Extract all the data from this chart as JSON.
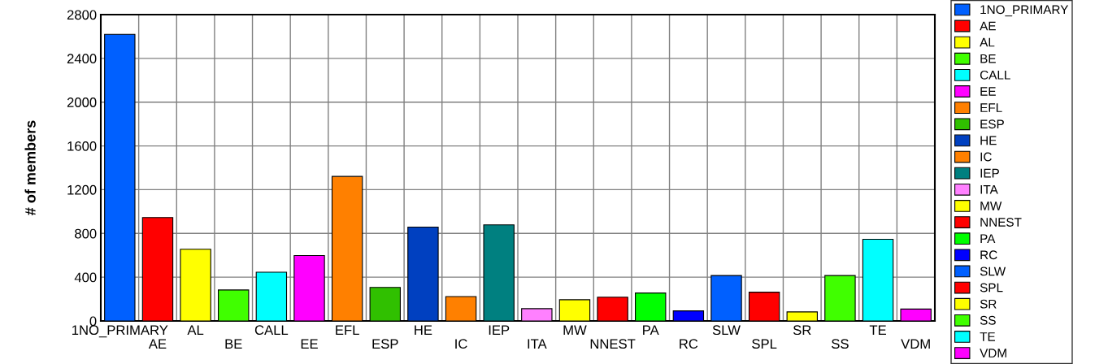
{
  "chart_data": {
    "type": "bar",
    "ylabel": "# of members",
    "categories": [
      "1NO_PRIMARY",
      "AE",
      "AL",
      "BE",
      "CALL",
      "EE",
      "EFL",
      "ESP",
      "HE",
      "IC",
      "IEP",
      "ITA",
      "MW",
      "NNEST",
      "PA",
      "RC",
      "SLW",
      "SPL",
      "SR",
      "SS",
      "TE",
      "VDM"
    ],
    "series": [
      {
        "name": "1NO_PRIMARY",
        "color": "#0060ff",
        "values": [
          2620,
          null,
          null,
          null,
          null,
          null,
          null,
          null,
          null,
          null,
          null,
          null,
          null,
          null,
          null,
          null,
          null,
          null,
          null,
          null,
          null,
          null
        ]
      },
      {
        "name": "AE",
        "color": "#ff0000",
        "values": [
          null,
          945,
          null,
          null,
          null,
          null,
          null,
          null,
          null,
          null,
          null,
          null,
          null,
          null,
          null,
          null,
          null,
          null,
          null,
          null,
          null,
          null
        ]
      },
      {
        "name": "AL",
        "color": "#ffff00",
        "values": [
          null,
          null,
          655,
          null,
          null,
          null,
          null,
          null,
          null,
          null,
          null,
          null,
          null,
          null,
          null,
          null,
          null,
          null,
          null,
          null,
          null,
          null
        ]
      },
      {
        "name": "BE",
        "color": "#40ff00",
        "values": [
          null,
          null,
          null,
          283,
          null,
          null,
          null,
          null,
          null,
          null,
          null,
          null,
          null,
          null,
          null,
          null,
          null,
          null,
          null,
          null,
          null,
          null
        ]
      },
      {
        "name": "CALL",
        "color": "#00ffff",
        "values": [
          null,
          null,
          null,
          null,
          446,
          null,
          null,
          null,
          null,
          null,
          null,
          null,
          null,
          null,
          null,
          null,
          null,
          null,
          null,
          null,
          null,
          null
        ]
      },
      {
        "name": "EE",
        "color": "#ff00ff",
        "values": [
          null,
          null,
          null,
          null,
          null,
          598,
          null,
          null,
          null,
          null,
          null,
          null,
          null,
          null,
          null,
          null,
          null,
          null,
          null,
          null,
          null,
          null
        ]
      },
      {
        "name": "EFL",
        "color": "#ff8000",
        "values": [
          null,
          null,
          null,
          null,
          null,
          null,
          1321,
          null,
          null,
          null,
          null,
          null,
          null,
          null,
          null,
          null,
          null,
          null,
          null,
          null,
          null,
          null
        ]
      },
      {
        "name": "ESP",
        "color": "#30c000",
        "values": [
          null,
          null,
          null,
          null,
          null,
          null,
          null,
          306,
          null,
          null,
          null,
          null,
          null,
          null,
          null,
          null,
          null,
          null,
          null,
          null,
          null,
          null
        ]
      },
      {
        "name": "HE",
        "color": "#0040c0",
        "values": [
          null,
          null,
          null,
          null,
          null,
          null,
          null,
          null,
          858,
          null,
          null,
          null,
          null,
          null,
          null,
          null,
          null,
          null,
          null,
          null,
          null,
          null
        ]
      },
      {
        "name": "IC",
        "color": "#ff8000",
        "values": [
          null,
          null,
          null,
          null,
          null,
          null,
          null,
          null,
          null,
          223,
          null,
          null,
          null,
          null,
          null,
          null,
          null,
          null,
          null,
          null,
          null,
          null
        ]
      },
      {
        "name": "IEP",
        "color": "#008080",
        "values": [
          null,
          null,
          null,
          null,
          null,
          null,
          null,
          null,
          null,
          null,
          878,
          null,
          null,
          null,
          null,
          null,
          null,
          null,
          null,
          null,
          null,
          null
        ]
      },
      {
        "name": "ITA",
        "color": "#ff80ff",
        "values": [
          null,
          null,
          null,
          null,
          null,
          null,
          null,
          null,
          null,
          null,
          null,
          112,
          null,
          null,
          null,
          null,
          null,
          null,
          null,
          null,
          null,
          null
        ]
      },
      {
        "name": "MW",
        "color": "#ffff00",
        "values": [
          null,
          null,
          null,
          null,
          null,
          null,
          null,
          null,
          null,
          null,
          null,
          null,
          194,
          null,
          null,
          null,
          null,
          null,
          null,
          null,
          null,
          null
        ]
      },
      {
        "name": "NNEST",
        "color": "#ff0000",
        "values": [
          null,
          null,
          null,
          null,
          null,
          null,
          null,
          null,
          null,
          null,
          null,
          null,
          null,
          217,
          null,
          null,
          null,
          null,
          null,
          null,
          null,
          null
        ]
      },
      {
        "name": "PA",
        "color": "#00ff00",
        "values": [
          null,
          null,
          null,
          null,
          null,
          null,
          null,
          null,
          null,
          null,
          null,
          null,
          null,
          null,
          255,
          null,
          null,
          null,
          null,
          null,
          null,
          null
        ]
      },
      {
        "name": "RC",
        "color": "#0000ff",
        "values": [
          null,
          null,
          null,
          null,
          null,
          null,
          null,
          null,
          null,
          null,
          null,
          null,
          null,
          null,
          null,
          92,
          null,
          null,
          null,
          null,
          null,
          null
        ]
      },
      {
        "name": "SLW",
        "color": "#0060ff",
        "values": [
          null,
          null,
          null,
          null,
          null,
          null,
          null,
          null,
          null,
          null,
          null,
          null,
          null,
          null,
          null,
          null,
          415,
          null,
          null,
          null,
          null,
          null
        ]
      },
      {
        "name": "SPL",
        "color": "#ff0000",
        "values": [
          null,
          null,
          null,
          null,
          null,
          null,
          null,
          null,
          null,
          null,
          null,
          null,
          null,
          null,
          null,
          null,
          null,
          263,
          null,
          null,
          null,
          null
        ]
      },
      {
        "name": "SR",
        "color": "#ffff00",
        "values": [
          null,
          null,
          null,
          null,
          null,
          null,
          null,
          null,
          null,
          null,
          null,
          null,
          null,
          null,
          null,
          null,
          null,
          null,
          83,
          null,
          null,
          null
        ]
      },
      {
        "name": "SS",
        "color": "#40ff00",
        "values": [
          null,
          null,
          null,
          null,
          null,
          null,
          null,
          null,
          null,
          null,
          null,
          null,
          null,
          null,
          null,
          null,
          null,
          null,
          null,
          415,
          null,
          null
        ]
      },
      {
        "name": "TE",
        "color": "#00ffff",
        "values": [
          null,
          null,
          null,
          null,
          null,
          null,
          null,
          null,
          null,
          null,
          null,
          null,
          null,
          null,
          null,
          null,
          null,
          null,
          null,
          null,
          746,
          null
        ]
      },
      {
        "name": "VDM",
        "color": "#ff00ff",
        "values": [
          null,
          null,
          null,
          null,
          null,
          null,
          null,
          null,
          null,
          null,
          null,
          null,
          null,
          null,
          null,
          null,
          null,
          null,
          null,
          null,
          null,
          109
        ]
      }
    ],
    "ylim": [
      0,
      2800
    ],
    "yticks": [
      0,
      400,
      800,
      1200,
      1600,
      2000,
      2400,
      2800
    ],
    "grid": true,
    "legend": "right"
  }
}
